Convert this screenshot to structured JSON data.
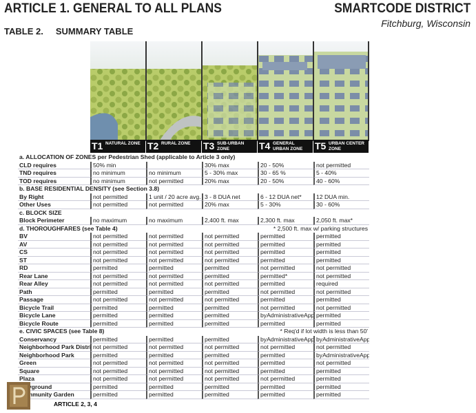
{
  "header": {
    "title": "ARTICLE 1. GENERAL TO ALL PLANS",
    "district": "SMARTCODE DISTRICT",
    "location": "Fitchburg, Wisconsin",
    "table_title": "TABLE 2.     SUMMARY TABLE"
  },
  "zones": [
    {
      "code": "T1",
      "name": "NATURAL ZONE"
    },
    {
      "code": "T2",
      "name": "RURAL ZONE"
    },
    {
      "code": "T3",
      "name": "SUB-URBAN ZONE"
    },
    {
      "code": "T4",
      "name": "GENERAL URBAN ZONE"
    },
    {
      "code": "T5",
      "name": "URBAN CENTER ZONE"
    }
  ],
  "sections": [
    {
      "title": "a.  ALLOCATION OF ZONES per Pedestrian Shed (applicable to Article 3 only)",
      "rows": [
        {
          "label": "CLD requires",
          "cells": [
            "50% min",
            null,
            "30% max",
            "20 - 50%",
            "not permitted"
          ]
        },
        {
          "label": "TND requires",
          "cells": [
            "no minimum",
            "no minimum",
            "5 - 30% max",
            "30 - 65 %",
            "5 - 40%"
          ]
        },
        {
          "label": "TOD requires",
          "cells": [
            "no minimum",
            "not permitted",
            "20% max",
            "20 - 50%",
            "40 - 60%"
          ]
        }
      ]
    },
    {
      "title": "b.  BASE RESIDENTIAL DENSITY   (see Section 3.8)",
      "rows": [
        {
          "label": "By Right",
          "cells": [
            "not permitted",
            "1 unit / 20 acre avg.",
            "3 - 8 DUA net",
            "6 - 12 DUA net*",
            "12 DUA min."
          ]
        },
        {
          "label": "Other Uses",
          "cells": [
            "not permitted",
            "not permitted",
            "20% max",
            "5 - 30%",
            "30 - 60%"
          ]
        }
      ]
    },
    {
      "title": "c.  BLOCK SIZE",
      "rows": [
        {
          "label": "Block Perimeter",
          "cells": [
            "no maximum",
            "no maximum",
            "2,400 ft. max",
            "2,300 ft. max",
            "2,050 ft. max*"
          ]
        }
      ]
    },
    {
      "title": "d.  THOROUGHFARES   (see Table 4)",
      "note": "* 2,500 ft. max w/ parking structures",
      "rows": [
        {
          "label": "BV",
          "cells": [
            "not permitted",
            "not permitted",
            "not permitted",
            "permitted",
            "permitted"
          ]
        },
        {
          "label": "AV",
          "cells": [
            "not permitted",
            "not permitted",
            "not permitted",
            "permitted",
            "permitted"
          ]
        },
        {
          "label": "CS",
          "cells": [
            "not permitted",
            "not permitted",
            "not permitted",
            "permitted",
            "permitted"
          ]
        },
        {
          "label": "ST",
          "cells": [
            "not permitted",
            "not permitted",
            "not permitted",
            "permitted",
            "permitted"
          ]
        },
        {
          "label": "RD",
          "cells": [
            "permitted",
            "permitted",
            "permitted",
            "not permitted",
            "not permitted"
          ]
        },
        {
          "label": "Rear Lane",
          "cells": [
            "not permitted",
            "not permitted",
            "permitted",
            "permitted*",
            "not permitted"
          ]
        },
        {
          "label": "Rear Alley",
          "cells": [
            "not permitted",
            "not permitted",
            "not permitted",
            "permitted",
            "required"
          ]
        },
        {
          "label": "Path",
          "cells": [
            "permitted",
            "permitted",
            "permitted",
            "not permitted",
            "not permitted"
          ]
        },
        {
          "label": "Passage",
          "cells": [
            "not permitted",
            "not permitted",
            "not permitted",
            "permitted",
            "permitted"
          ]
        },
        {
          "label": "Bicycle Trail",
          "cells": [
            "permitted",
            "permitted",
            "permitted",
            "not permitted",
            "not permitted"
          ]
        },
        {
          "label": "Bicycle Lane",
          "cells": [
            "permitted",
            "permitted",
            "permitted",
            "byAdministrativeApproval",
            "permitted"
          ]
        },
        {
          "label": "Bicycle Route",
          "cells": [
            "permitted",
            "permitted",
            "permitted",
            "permitted",
            "permitted"
          ]
        }
      ]
    },
    {
      "title": "e.  CIVIC SPACES  (see Table 8)",
      "note": "* Req'd if lot width is less than 50'",
      "rows": [
        {
          "label": "Conservancy",
          "cells": [
            "permitted",
            "permitted",
            "permitted",
            "byAdministrativeApproval",
            "byAdministrativeApproval"
          ]
        },
        {
          "label": "Neighborhood Park District",
          "cells": [
            "not permitted",
            "not permitted",
            "not permitted",
            "not permitted",
            "not permitted"
          ]
        },
        {
          "label": "Neighborhood Park",
          "cells": [
            "permitted",
            "permitted",
            "permitted",
            "permitted",
            "byAdministrativeApproval"
          ]
        },
        {
          "label": "Green",
          "cells": [
            "not permitted",
            "not permitted",
            "not permitted",
            "permitted",
            "not permitted"
          ]
        },
        {
          "label": "Square",
          "cells": [
            "not permitted",
            "not permitted",
            "not permitted",
            "permitted",
            "permitted"
          ]
        },
        {
          "label": "Plaza",
          "cells": [
            "not permitted",
            "not permitted",
            "not permitted",
            "not permitted",
            "permitted"
          ]
        },
        {
          "label": "Playground",
          "cells": [
            "permitted",
            "permitted",
            "permitted",
            "permitted",
            "permitted"
          ]
        },
        {
          "label": "Community Garden",
          "cells": [
            "permitted",
            "permitted",
            "permitted",
            "permitted",
            "permitted"
          ]
        }
      ]
    }
  ],
  "footer": "ARTICLE 2, 3, 4"
}
